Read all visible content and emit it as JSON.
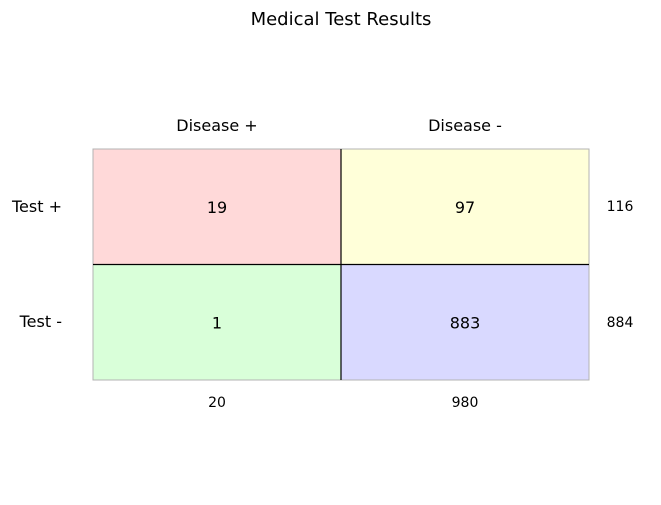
{
  "chart_data": {
    "type": "table",
    "title": "Medical Test Results",
    "columns": [
      "Disease +",
      "Disease -"
    ],
    "rows": [
      "Test +",
      "Test -"
    ],
    "values": [
      [
        19,
        97
      ],
      [
        1,
        883
      ]
    ],
    "row_totals": [
      116,
      884
    ],
    "column_totals": [
      20,
      980
    ],
    "cell_colors": [
      [
        "#ffd9d9",
        "#ffffd9"
      ],
      [
        "#d9ffd9",
        "#d9d9ff"
      ]
    ]
  }
}
